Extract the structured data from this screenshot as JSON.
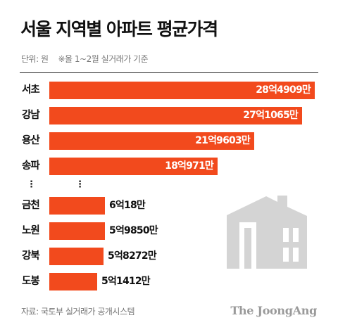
{
  "header": {
    "title": "서울 지역별 아파트 평균가격",
    "unit": "단위: 원",
    "note": "※올 1~2월 실거래가 기준"
  },
  "footer": {
    "source": "자료: 국토부 실거래가 공개시스템",
    "logo": "The JoongAng"
  },
  "ellipsis": "⋮",
  "icons": {
    "building": "building-icon"
  },
  "colors": {
    "bar": "#f24a1d",
    "building": "#d4d4d4"
  },
  "chart_data": {
    "type": "bar",
    "orientation": "horizontal",
    "title": "서울 지역별 아파트 평균가격",
    "unit": "원",
    "axis_break_after_index": 3,
    "categories": [
      "서초",
      "강남",
      "용산",
      "송파",
      "금천",
      "노원",
      "강북",
      "도봉"
    ],
    "values": [
      2849090000,
      2710650000,
      2196030000,
      1809710000,
      600180000,
      598500000,
      582720000,
      514120000
    ],
    "value_labels": [
      "28억4909만",
      "27억1065만",
      "21억9603만",
      "18억971만",
      "6억18만",
      "5억9850만",
      "5억8272만",
      "5억1412만"
    ],
    "xlim": [
      0,
      2849090000
    ],
    "legend": "none",
    "grid": false
  }
}
